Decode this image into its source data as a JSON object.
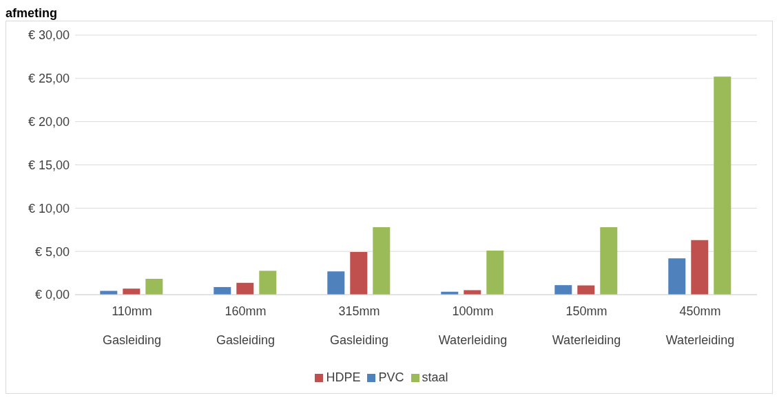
{
  "chart_data": {
    "type": "bar",
    "title": "afmeting",
    "categories": [
      "110mm\nGasleiding",
      "160mm\nGasleiding",
      "315mm\nGasleiding",
      "100mm\nWaterleiding",
      "150mm\nWaterleiding",
      "450mm\nWaterleiding"
    ],
    "series": [
      {
        "name": "PVC",
        "color": "#4f81bd",
        "values": [
          0.44,
          0.88,
          2.69,
          0.34,
          1.1,
          4.2
        ]
      },
      {
        "name": "HDPE",
        "color": "#c0504d",
        "values": [
          0.7,
          1.37,
          4.94,
          0.52,
          1.07,
          6.3
        ]
      },
      {
        "name": "staal",
        "color": "#9bbb59",
        "values": [
          1.83,
          2.76,
          7.8,
          5.1,
          7.8,
          25.2
        ]
      }
    ],
    "ylim": [
      0,
      30
    ],
    "yticks": [
      {
        "value": 0,
        "label": "€ 0,00"
      },
      {
        "value": 5,
        "label": "€ 5,00"
      },
      {
        "value": 10,
        "label": "€ 10,00"
      },
      {
        "value": 15,
        "label": "€ 15,00"
      },
      {
        "value": 20,
        "label": "€ 20,00"
      },
      {
        "value": 25,
        "label": "€ 25,00"
      },
      {
        "value": 30,
        "label": "€ 30,00"
      }
    ],
    "grid": "y",
    "legend": "bottom"
  }
}
